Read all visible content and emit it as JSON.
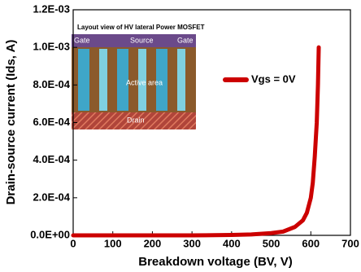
{
  "chart_data": {
    "type": "line",
    "x_label": "Breakdown voltage (BV, V)",
    "y_label": "Drain-source current (Ids, A)",
    "x": [
      0,
      100,
      200,
      300,
      400,
      450,
      500,
      530,
      560,
      580,
      590,
      600,
      605,
      610,
      615,
      618,
      620
    ],
    "series": [
      {
        "name": "Vgs = 0V",
        "color": "#cc0000",
        "values": [
          0,
          0,
          0,
          0,
          2e-06,
          5e-06,
          1.2e-05,
          2e-05,
          4.5e-05,
          8e-05,
          0.00012,
          0.0002,
          0.00028,
          0.00042,
          0.0006,
          0.0008,
          0.001
        ]
      }
    ],
    "xlim": [
      0,
      700
    ],
    "xticks": [
      0,
      100,
      200,
      300,
      400,
      500,
      600,
      700
    ],
    "ylim": [
      0,
      0.0012
    ],
    "yticks": [
      {
        "value": 0,
        "label": "0.0E+00"
      },
      {
        "value": 0.0002,
        "label": "2.0E-04"
      },
      {
        "value": 0.0004,
        "label": "4.0E-04"
      },
      {
        "value": 0.0006,
        "label": "6.0E-04"
      },
      {
        "value": 0.0008,
        "label": "8.0E-04"
      },
      {
        "value": 0.001,
        "label": "1.0E-03"
      },
      {
        "value": 0.0012,
        "label": "1.2E-03"
      }
    ],
    "grid": false,
    "inset": {
      "title": "Layout view of HV lateral Power MOSFET",
      "labels": [
        "Gate",
        "Source",
        "Gate",
        "Active area",
        "Drain"
      ]
    }
  }
}
